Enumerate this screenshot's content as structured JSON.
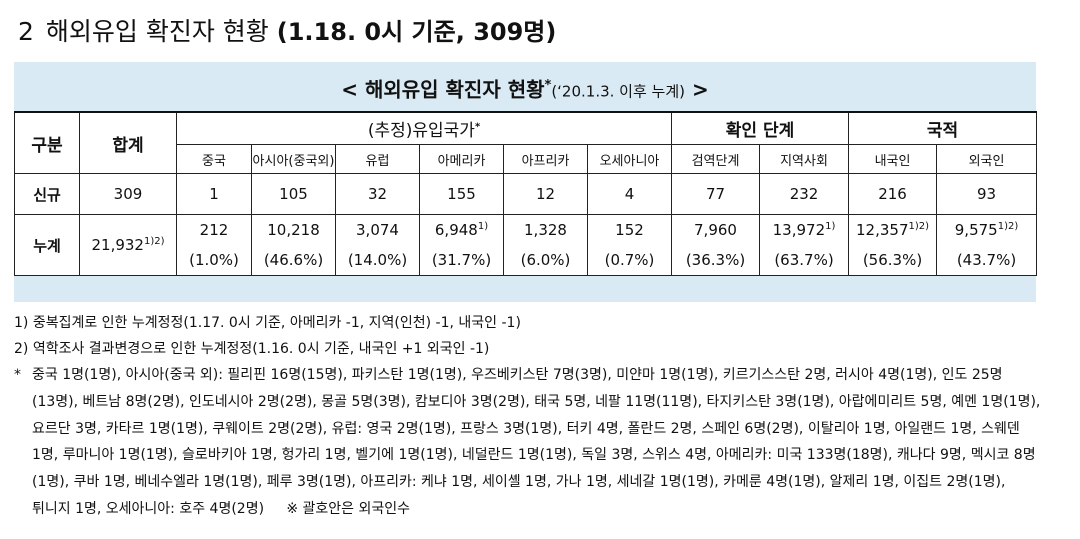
{
  "heading": {
    "number": "2",
    "title": "해외유입 확진자 현황",
    "paren": "(1.18. 0시 기준, 309명)"
  },
  "table_title": {
    "main": "< 해외유입 확진자 현황",
    "star": "*",
    "sub": "(‘20.1.3. 이후 누계)",
    "close": " >"
  },
  "header": {
    "category": "구분",
    "total": "합계",
    "countries_group": "(추정)유입국가",
    "countries_star": "*",
    "confirm_group": "확인 단계",
    "nationality_group": "국적",
    "columns": [
      "중국",
      "아시아(중국외)",
      "유럽",
      "아메리카",
      "아프리카",
      "오세아니아",
      "검역단계",
      "지역사회",
      "내국인",
      "외국인"
    ]
  },
  "rows": {
    "new": {
      "label": "신규",
      "total": "309",
      "values": [
        "1",
        "105",
        "32",
        "155",
        "12",
        "4",
        "77",
        "232",
        "216",
        "93"
      ]
    },
    "cumulative": {
      "label": "누계",
      "total": "21,932",
      "total_note": "1)2)",
      "values": [
        "212",
        "10,218",
        "3,074",
        "6,948",
        "1,328",
        "152",
        "7,960",
        "13,972",
        "12,357",
        "9,575"
      ],
      "notes": [
        "",
        "",
        "",
        "1)",
        "",
        "",
        "",
        "1)",
        "1)2)",
        "1)2)"
      ],
      "percents": [
        "(1.0%)",
        "(46.6%)",
        "(14.0%)",
        "(31.7%)",
        "(6.0%)",
        "(0.7%)",
        "(36.3%)",
        "(63.7%)",
        "(56.3%)",
        "(43.7%)"
      ]
    }
  },
  "notes": {
    "n1": "1) 중복집계로 인한 누계정정(1.17. 0시 기준, 아메리카 -1, 지역(인천) -1, 내국인 -1)",
    "n2": "2) 역학조사 결과변경으로 인한 누계정정(1.16. 0시 기준, 내국인 +1 외국인 -1)",
    "star_mark": "*",
    "star_text": "중국 1명(1명), 아시아(중국 외): 필리핀 16명(15명), 파키스탄 1명(1명), 우즈베키스탄 7명(3명), 미얀마 1명(1명), 키르기스스탄 2명, 러시아 4명(1명), 인도 25명(13명), 베트남 8명(2명), 인도네시아 2명(2명), 몽골 5명(3명), 캄보디아 3명(2명), 태국 5명, 네팔 11명(11명), 타지키스탄 3명(1명), 아랍에미리트 5명, 예멘 1명(1명), 요르단 3명, 카타르 1명(1명), 쿠웨이트 2명(2명), 유럽: 영국 2명(1명), 프랑스 3명(1명), 터키 4명, 폴란드 2명, 스페인 6명(2명), 이탈리아 1명, 아일랜드 1명, 스웨덴 1명, 루마니아 1명(1명), 슬로바키아 1명, 헝가리 1명, 벨기에 1명(1명), 네덜란드 1명(1명), 독일 3명, 스위스 4명, 아메리카: 미국 133명(18명), 캐나다 9명, 멕시코 8명(1명), 쿠바 1명, 베네수엘라 1명(1명), 페루 3명(1명), 아프리카: 케냐 1명, 세이셸 1명, 가나 1명, 세네갈 1명(1명), 카메룬 4명(1명), 알제리 1명, 이집트 2명(1명), 튀니지 1명, 오세아니아: 호주 4명(2명)",
    "star_tail": "※ 괄호안은 외국인수"
  }
}
